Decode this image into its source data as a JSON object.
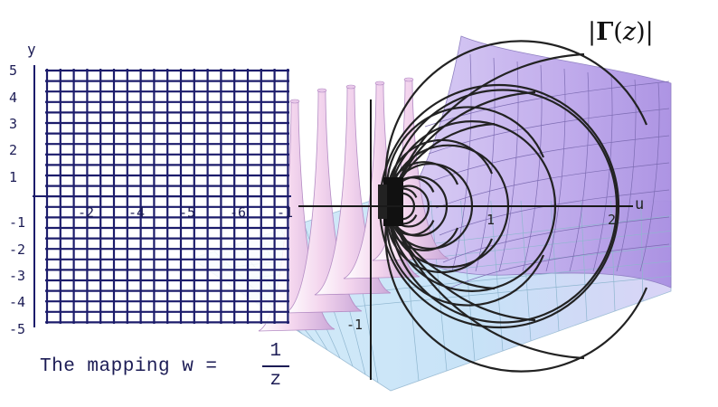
{
  "surface": {
    "label_open": "|",
    "label_gamma": "Γ",
    "label_arg": "(",
    "label_var": "z",
    "label_close": ")|"
  },
  "z_plane": {
    "axis_y_label": "y",
    "y_ticks": [
      "5",
      "4",
      "3",
      "2",
      "1",
      "-1",
      "-2",
      "-3",
      "-4",
      "-5"
    ],
    "x_ticks": [
      "-2",
      "-4",
      "-5",
      "-6",
      "-1"
    ]
  },
  "w_plane": {
    "axis_u_label": "u",
    "u_ticks": [
      "1",
      "2"
    ],
    "v_ticks": [
      "-1"
    ]
  },
  "caption": {
    "lead": "The mapping  w =",
    "numerator": "1",
    "denominator": "z"
  },
  "colors": {
    "grid": "#1c1c6b",
    "surface_floor": "#c9e6f6",
    "surface_wall": "#c6b3ee",
    "mesh": "#222222",
    "axis": "#1a1a1a"
  }
}
